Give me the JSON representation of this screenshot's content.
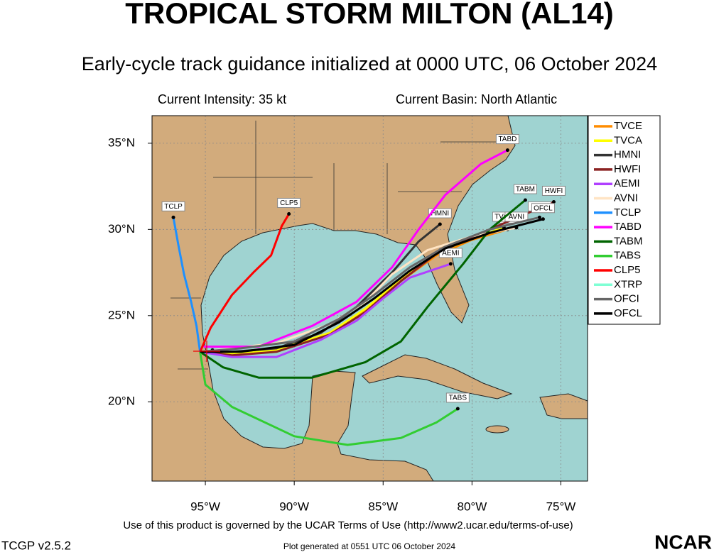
{
  "chart_data": {
    "type": "track-map",
    "title": "TROPICAL STORM MILTON (AL14)",
    "subtitle": "Early-cycle track guidance initialized at 0000 UTC, 06 October 2024",
    "intensity": "Current Intensity: 35 kt",
    "basin": "Current Basin: North Atlantic",
    "xlim": [
      -98,
      -73.5
    ],
    "ylim": [
      15.4,
      36.6
    ],
    "xticks": [
      {
        "value": -95,
        "label": "95°W"
      },
      {
        "value": -90,
        "label": "90°W"
      },
      {
        "value": -85,
        "label": "85°W"
      },
      {
        "value": -80,
        "label": "80°W"
      },
      {
        "value": -75,
        "label": "75°W"
      }
    ],
    "yticks": [
      {
        "value": 20,
        "label": "20°N"
      },
      {
        "value": 25,
        "label": "25°N"
      },
      {
        "value": 30,
        "label": "30°N"
      },
      {
        "value": 35,
        "label": "35°N"
      }
    ],
    "grid": true,
    "series": [
      {
        "name": "TVCE",
        "color": "#ff8c00",
        "x": [
          -95.3,
          -93.5,
          -91,
          -88,
          -86,
          -84,
          -82,
          -80,
          -78
        ],
        "values": [
          22.9,
          22.8,
          23.0,
          24.0,
          25.3,
          27.0,
          28.5,
          29.4,
          30.0
        ]
      },
      {
        "name": "TVCA",
        "color": "#ffff00",
        "x": [
          -95.3,
          -93.5,
          -91,
          -88,
          -86,
          -84,
          -82,
          -80,
          -78.2
        ],
        "values": [
          22.9,
          22.8,
          23.0,
          24.0,
          25.4,
          27.1,
          28.6,
          29.5,
          30.1
        ]
      },
      {
        "name": "HMNI",
        "color": "#333333",
        "x": [
          -95.3,
          -93.5,
          -91,
          -88.5,
          -86.5,
          -84.5,
          -83,
          -81.8
        ],
        "values": [
          22.9,
          22.9,
          23.1,
          24.0,
          25.5,
          27.5,
          29.3,
          30.3
        ]
      },
      {
        "name": "HWFI",
        "color": "#8b2323",
        "x": [
          -95.3,
          -93.5,
          -91,
          -88,
          -86,
          -84,
          -82,
          -79,
          -75.4
        ],
        "values": [
          22.9,
          22.7,
          22.9,
          23.9,
          25.2,
          27.0,
          28.6,
          30.0,
          31.6
        ]
      },
      {
        "name": "AEMI",
        "color": "#b040ff",
        "x": [
          -95.3,
          -93.5,
          -91,
          -88.5,
          -86.5,
          -85,
          -83.5,
          -81.2
        ],
        "values": [
          22.9,
          22.6,
          22.6,
          23.6,
          24.7,
          26.0,
          27.2,
          28.0
        ]
      },
      {
        "name": "AVNI",
        "color": "#ffe4c4",
        "x": [
          -95.3,
          -93.5,
          -91,
          -88,
          -86,
          -84.5,
          -82.5,
          -80,
          -77.5
        ],
        "values": [
          22.9,
          23.1,
          23.4,
          24.5,
          25.8,
          27.4,
          28.8,
          29.6,
          30.1
        ]
      },
      {
        "name": "TCLP",
        "color": "#1e90ff",
        "x": [
          -95.3,
          -95.5,
          -95.8,
          -96.2,
          -96.5,
          -96.8
        ],
        "values": [
          22.9,
          24.4,
          25.8,
          27.4,
          29.0,
          30.7
        ]
      },
      {
        "name": "TABD",
        "color": "#ff00ff",
        "x": [
          -95.1,
          -92,
          -89,
          -86.5,
          -84.5,
          -83,
          -81.5,
          -79.5,
          -78
        ],
        "values": [
          23.2,
          23.2,
          24.4,
          25.8,
          27.8,
          30.0,
          32.0,
          33.8,
          34.6
        ]
      },
      {
        "name": "TABM",
        "color": "#006400",
        "x": [
          -95.3,
          -94,
          -92,
          -89,
          -86,
          -84,
          -82.5,
          -80.5,
          -79,
          -77
        ],
        "values": [
          22.9,
          22.0,
          21.4,
          21.4,
          22.3,
          23.5,
          25.5,
          28.0,
          30.0,
          31.7
        ]
      },
      {
        "name": "TABS",
        "color": "#32cd32",
        "x": [
          -95.3,
          -95,
          -93.5,
          -90,
          -87,
          -84,
          -82,
          -80.8
        ],
        "values": [
          22.9,
          21.0,
          19.7,
          18.0,
          17.5,
          17.9,
          18.8,
          19.6
        ]
      },
      {
        "name": "CLP5",
        "color": "#ff0000",
        "x": [
          -95.3,
          -94.7,
          -93.5,
          -92.3,
          -91.3,
          -90.7,
          -90.3
        ],
        "values": [
          22.9,
          24.3,
          26.2,
          27.5,
          28.5,
          30.2,
          30.9
        ]
      },
      {
        "name": "XTRP",
        "color": "#7fffd4",
        "x": [
          -95.3,
          -94.6
        ],
        "values": [
          22.9,
          23.0
        ]
      },
      {
        "name": "OFCI",
        "color": "#666666",
        "x": [
          -95.3,
          -93,
          -90,
          -87.5,
          -85.5,
          -83.5,
          -81.5,
          -79,
          -76.2
        ],
        "values": [
          22.9,
          23.1,
          23.5,
          24.8,
          26.2,
          27.8,
          29.0,
          30.0,
          30.7
        ]
      },
      {
        "name": "OFCL",
        "color": "#000000",
        "x": [
          -95.3,
          -93,
          -90,
          -87.5,
          -85.5,
          -83.5,
          -81.5,
          -79,
          -76
        ],
        "values": [
          22.9,
          22.9,
          23.3,
          24.6,
          26.0,
          27.6,
          28.9,
          29.8,
          30.6
        ]
      }
    ],
    "terms": "Use of this product is governed by the UCAR Terms of Use (http://www2.ucar.edu/terms-of-use)",
    "version": "TCGP v2.5.2",
    "generated": "Plot generated at 0551 UTC   06 October 2024",
    "logo": "NCAR"
  }
}
